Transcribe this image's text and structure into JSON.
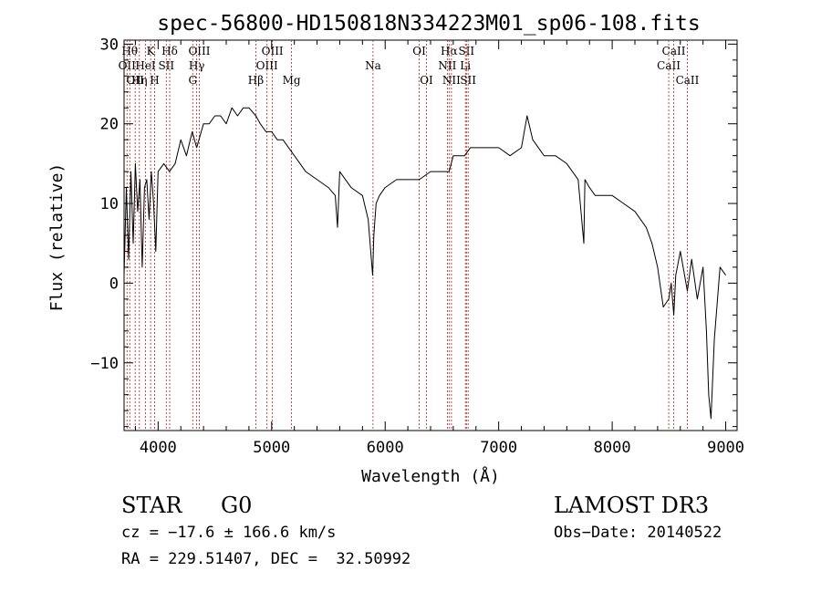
{
  "chart_data": {
    "type": "line",
    "title": "spec-56800-HD150818N334223M01_sp06-108.fits",
    "xlabel": "Wavelength (Å)",
    "ylabel": "Flux (relative)",
    "xlim": [
      3700,
      9100
    ],
    "ylim": [
      -18.5,
      30.5
    ],
    "xticks": [
      4000,
      5000,
      6000,
      7000,
      8000,
      9000
    ],
    "yticks": [
      -10,
      0,
      10,
      20,
      30
    ],
    "grid": false,
    "line_color": "#000000",
    "marker_color": "#b22222",
    "series": [
      {
        "values_x": [
          3700,
          3720,
          3740,
          3760,
          3780,
          3800,
          3820,
          3840,
          3860,
          3880,
          3900,
          3920,
          3940,
          3960,
          3980,
          4000,
          4050,
          4100,
          4150,
          4200,
          4250,
          4300,
          4340,
          4400,
          4450,
          4500,
          4550,
          4600,
          4650,
          4700,
          4750,
          4800,
          4861,
          4900,
          4950,
          5000,
          5050,
          5100,
          5150,
          5200,
          5300,
          5400,
          5500,
          5560,
          5580,
          5600,
          5700,
          5800,
          5850,
          5890,
          5900,
          5920,
          5950,
          6000,
          6100,
          6200,
          6300,
          6400,
          6500,
          6563,
          6600,
          6650,
          6700,
          6750,
          6800,
          6900,
          7000,
          7100,
          7200,
          7250,
          7300,
          7400,
          7500,
          7600,
          7700,
          7750,
          7760,
          7800,
          7850,
          7900,
          8000,
          8100,
          8200,
          8300,
          8350,
          8400,
          8450,
          8498,
          8520,
          8542,
          8560,
          8600,
          8662,
          8700,
          8750,
          8800,
          8830,
          8850,
          8870,
          8900,
          8950,
          9000
        ],
        "values_y": [
          1,
          12,
          3,
          14,
          5,
          15,
          9,
          13,
          2,
          12,
          13,
          8,
          14,
          10,
          4,
          14,
          15,
          14,
          15,
          18,
          16,
          19,
          17,
          20,
          20,
          21,
          21,
          20,
          22,
          21,
          22,
          22,
          21,
          20,
          19,
          19,
          18,
          18,
          17,
          16,
          14,
          13,
          12,
          11,
          7,
          14,
          12,
          11,
          8,
          1,
          6,
          10,
          11,
          12,
          13,
          13,
          13,
          14,
          14,
          14,
          16,
          16,
          16,
          17,
          17,
          17,
          17,
          16,
          17,
          21,
          18,
          16,
          16,
          15,
          13,
          5,
          13,
          12,
          11,
          11,
          11,
          10,
          9,
          7,
          5,
          2,
          -3,
          -2,
          0,
          -4,
          1,
          4,
          -1,
          3,
          -2,
          2,
          -6,
          -14,
          -17,
          -7,
          2,
          1
        ]
      }
    ],
    "line_markers": [
      {
        "x": 3726,
        "label": "OII",
        "row": 2
      },
      {
        "x": 3750,
        "label": "Hθ",
        "row": 1
      },
      {
        "x": 3798,
        "label": "OII",
        "row": 3
      },
      {
        "x": 3835,
        "label": "Hη",
        "row": 3
      },
      {
        "x": 3889,
        "label": "HeI",
        "row": 2
      },
      {
        "x": 3934,
        "label": "K",
        "row": 1
      },
      {
        "x": 3969,
        "label": "H",
        "row": 3
      },
      {
        "x": 4072,
        "label": "SII",
        "row": 2
      },
      {
        "x": 4102,
        "label": "Hδ",
        "row": 1
      },
      {
        "x": 4305,
        "label": "G",
        "row": 3
      },
      {
        "x": 4340,
        "label": "Hγ",
        "row": 2
      },
      {
        "x": 4363,
        "label": "OIII",
        "row": 1
      },
      {
        "x": 4861,
        "label": "Hβ",
        "row": 3
      },
      {
        "x": 4959,
        "label": "OIII",
        "row": 2
      },
      {
        "x": 5007,
        "label": "OIII",
        "row": 1
      },
      {
        "x": 5175,
        "label": "Mg",
        "row": 3
      },
      {
        "x": 5893,
        "label": "Na",
        "row": 2
      },
      {
        "x": 6300,
        "label": "OI",
        "row": 1
      },
      {
        "x": 6364,
        "label": "OI",
        "row": 3
      },
      {
        "x": 6548,
        "label": "NII",
        "row": 2
      },
      {
        "x": 6563,
        "label": "Hα",
        "row": 1
      },
      {
        "x": 6584,
        "label": "NII",
        "row": 3
      },
      {
        "x": 6707,
        "label": "Li",
        "row": 2
      },
      {
        "x": 6716,
        "label": "SII",
        "row": 1
      },
      {
        "x": 6731,
        "label": "SII",
        "row": 3
      },
      {
        "x": 8498,
        "label": "CaII",
        "row": 2
      },
      {
        "x": 8542,
        "label": "CaII",
        "row": 1
      },
      {
        "x": 8662,
        "label": "CaII",
        "row": 3
      }
    ]
  },
  "info": {
    "class": "STAR",
    "subclass": "G0",
    "survey": "LAMOST DR3",
    "cz": "cz = −17.6 ± 166.6 km/s",
    "obs_date": "Obs−Date: 20140522",
    "coords": "RA = 229.51407, DEC =  32.50992"
  }
}
